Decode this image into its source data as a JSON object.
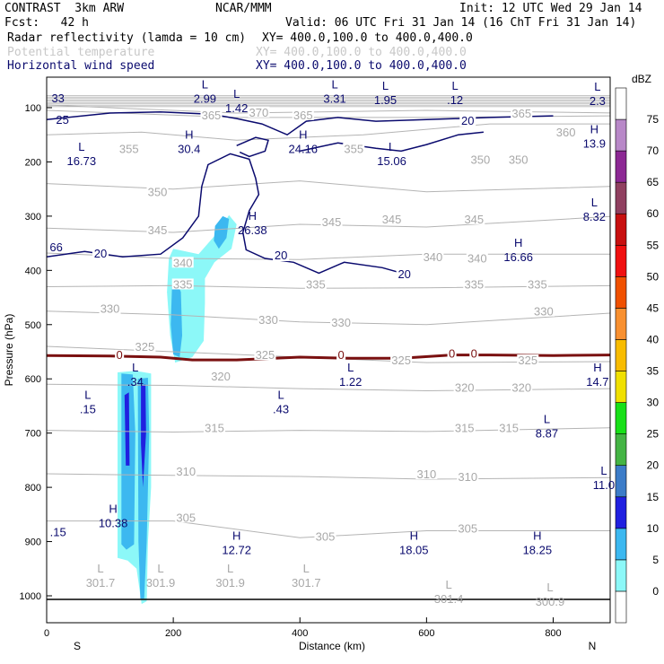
{
  "header": {
    "left1": "CONTRAST  3km ARW",
    "center1": "NCAR/MMM",
    "init": "Init: 12 UTC Wed 29 Jan 14",
    "fcst": "Fcst:   42 h",
    "valid": "Valid: 06 UTC Fri 31 Jan 14 (16 ChT Fri 31 Jan 14)",
    "field1": "Radar reflectivity (lamda = 10 cm)",
    "field1_xy": "XY= 400.0,100.0 to 400.0,400.0",
    "field2": "Potential temperature",
    "field2_xy": "XY= 400.0,100.0 to 400.0,400.0",
    "field3": "Horizontal wind speed",
    "field3_xy": "XY= 400.0,100.0 to 400.0,400.0"
  },
  "chart_data": {
    "type": "cross-section contour",
    "xlabel": "Distance (km)",
    "ylabel": "Pressure (hPa)",
    "xlim": [
      0,
      900
    ],
    "ylim": [
      1050,
      75
    ],
    "x_ticks": [
      0,
      200,
      400,
      600,
      800
    ],
    "y_ticks": [
      100,
      200,
      300,
      400,
      500,
      600,
      700,
      800,
      900,
      1000
    ],
    "left_end_label": "S",
    "right_end_label": "N",
    "colorbar": {
      "unit": "dBZ",
      "levels": [
        0,
        5,
        10,
        15,
        20,
        25,
        30,
        35,
        40,
        45,
        50,
        55,
        60,
        65,
        70,
        75
      ],
      "colors": [
        "#ffffff",
        "#8cf8f8",
        "#3cb8f0",
        "#2020e0",
        "#3c7cc8",
        "#44b444",
        "#18e018",
        "#f0e000",
        "#f8bc00",
        "#f89030",
        "#f05000",
        "#f01010",
        "#c81010",
        "#904060",
        "#8c2894",
        "#b888c8",
        "#ffffff"
      ]
    },
    "theta_labels": [
      {
        "x": 130,
        "p": 180,
        "v": "355"
      },
      {
        "x": 260,
        "p": 118,
        "v": "365"
      },
      {
        "x": 335,
        "p": 113,
        "v": "370"
      },
      {
        "x": 405,
        "p": 118,
        "v": "365"
      },
      {
        "x": 750,
        "p": 115,
        "v": "365"
      },
      {
        "x": 820,
        "p": 150,
        "v": "360"
      },
      {
        "x": 485,
        "p": 180,
        "v": "355"
      },
      {
        "x": 175,
        "p": 260,
        "v": "350"
      },
      {
        "x": 685,
        "p": 200,
        "v": "350"
      },
      {
        "x": 745,
        "p": 200,
        "v": "350"
      },
      {
        "x": 175,
        "p": 330,
        "v": "345"
      },
      {
        "x": 450,
        "p": 315,
        "v": "345"
      },
      {
        "x": 545,
        "p": 310,
        "v": "345"
      },
      {
        "x": 675,
        "p": 310,
        "v": "345"
      },
      {
        "x": 610,
        "p": 380,
        "v": "340"
      },
      {
        "x": 680,
        "p": 382,
        "v": "340"
      },
      {
        "x": 215,
        "p": 390,
        "v": "340"
      },
      {
        "x": 215,
        "p": 430,
        "v": "335"
      },
      {
        "x": 425,
        "p": 430,
        "v": "335"
      },
      {
        "x": 675,
        "p": 430,
        "v": "335"
      },
      {
        "x": 775,
        "p": 430,
        "v": "335"
      },
      {
        "x": 100,
        "p": 475,
        "v": "330"
      },
      {
        "x": 350,
        "p": 495,
        "v": "330"
      },
      {
        "x": 465,
        "p": 500,
        "v": "330"
      },
      {
        "x": 785,
        "p": 480,
        "v": "330"
      },
      {
        "x": 155,
        "p": 545,
        "v": "325"
      },
      {
        "x": 345,
        "p": 560,
        "v": "325"
      },
      {
        "x": 560,
        "p": 570,
        "v": "325"
      },
      {
        "x": 760,
        "p": 570,
        "v": "325"
      },
      {
        "x": 275,
        "p": 600,
        "v": "320"
      },
      {
        "x": 660,
        "p": 620,
        "v": "320"
      },
      {
        "x": 750,
        "p": 620,
        "v": "320"
      },
      {
        "x": 265,
        "p": 695,
        "v": "315"
      },
      {
        "x": 660,
        "p": 695,
        "v": "315"
      },
      {
        "x": 730,
        "p": 695,
        "v": "315"
      },
      {
        "x": 220,
        "p": 775,
        "v": "310"
      },
      {
        "x": 600,
        "p": 780,
        "v": "310"
      },
      {
        "x": 665,
        "p": 785,
        "v": "310"
      },
      {
        "x": 220,
        "p": 860,
        "v": "305"
      },
      {
        "x": 440,
        "p": 895,
        "v": "305"
      },
      {
        "x": 665,
        "p": 880,
        "v": "305"
      }
    ],
    "pressure_centers": [
      {
        "x": 250,
        "p": 78,
        "sym": "L",
        "v": "2.99"
      },
      {
        "x": 300,
        "p": 95,
        "sym": "L",
        "v": "1.42"
      },
      {
        "x": 455,
        "p": 78,
        "sym": "L",
        "v": "3.31"
      },
      {
        "x": 535,
        "p": 80,
        "sym": "L",
        "v": "1.95"
      },
      {
        "x": 645,
        "p": 80,
        "sym": "L",
        "v": ".12"
      },
      {
        "x": 870,
        "p": 82,
        "sym": "L",
        "v": "2.3"
      },
      {
        "x": 225,
        "p": 170,
        "sym": "H",
        "v": "30.4"
      },
      {
        "x": 405,
        "p": 170,
        "sym": "H",
        "v": "24.16"
      },
      {
        "x": 55,
        "p": 193,
        "sym": "L",
        "v": "16.73"
      },
      {
        "x": 545,
        "p": 193,
        "sym": "L",
        "v": "15.06"
      },
      {
        "x": 865,
        "p": 160,
        "sym": "H",
        "v": "13.9"
      },
      {
        "x": 865,
        "p": 295,
        "sym": "L",
        "v": "8.32"
      },
      {
        "x": 325,
        "p": 320,
        "sym": "H",
        "v": "26.38"
      },
      {
        "x": 745,
        "p": 370,
        "sym": "H",
        "v": "16.66"
      },
      {
        "x": 140,
        "p": 600,
        "sym": "L",
        "v": ".34"
      },
      {
        "x": 480,
        "p": 600,
        "sym": "L",
        "v": "1.22"
      },
      {
        "x": 870,
        "p": 600,
        "sym": "H",
        "v": "14.7"
      },
      {
        "x": 65,
        "p": 650,
        "sym": "L",
        "v": ".15"
      },
      {
        "x": 370,
        "p": 650,
        "sym": "L",
        "v": ".43"
      },
      {
        "x": 790,
        "p": 695,
        "sym": "L",
        "v": "8.87"
      },
      {
        "x": 880,
        "p": 790,
        "sym": "L",
        "v": "11.0"
      },
      {
        "x": 105,
        "p": 860,
        "sym": "H",
        "v": "10.38"
      },
      {
        "x": 300,
        "p": 910,
        "sym": "H",
        "v": "12.72"
      },
      {
        "x": 580,
        "p": 910,
        "sym": "H",
        "v": "18.05"
      },
      {
        "x": 775,
        "p": 910,
        "sym": "H",
        "v": "18.25"
      }
    ],
    "theta_centers": [
      {
        "x": 85,
        "p": 970,
        "sym": "L",
        "v": "301.7"
      },
      {
        "x": 180,
        "p": 970,
        "sym": "L",
        "v": "301.9"
      },
      {
        "x": 290,
        "p": 970,
        "sym": "L",
        "v": "301.9"
      },
      {
        "x": 410,
        "p": 970,
        "sym": "L",
        "v": "301.7"
      },
      {
        "x": 635,
        "p": 1000,
        "sym": "L",
        "v": "301.4"
      },
      {
        "x": 795,
        "p": 1005,
        "sym": "L",
        "v": "300.9"
      }
    ],
    "edge_labels": [
      {
        "x": 18,
        "p": 90,
        "v": "33"
      },
      {
        "x": 25,
        "p": 130,
        "v": "25"
      },
      {
        "x": 15,
        "p": 365,
        "v": "66"
      },
      {
        "x": 18,
        "p": 890,
        "v": ".15"
      }
    ],
    "wind_labels": [
      {
        "x": 85,
        "p": 375,
        "v": "20"
      },
      {
        "x": 370,
        "p": 378,
        "v": "20"
      },
      {
        "x": 565,
        "p": 413,
        "v": "20"
      },
      {
        "x": 665,
        "p": 130,
        "v": "20"
      }
    ],
    "freezing_label": "0"
  }
}
